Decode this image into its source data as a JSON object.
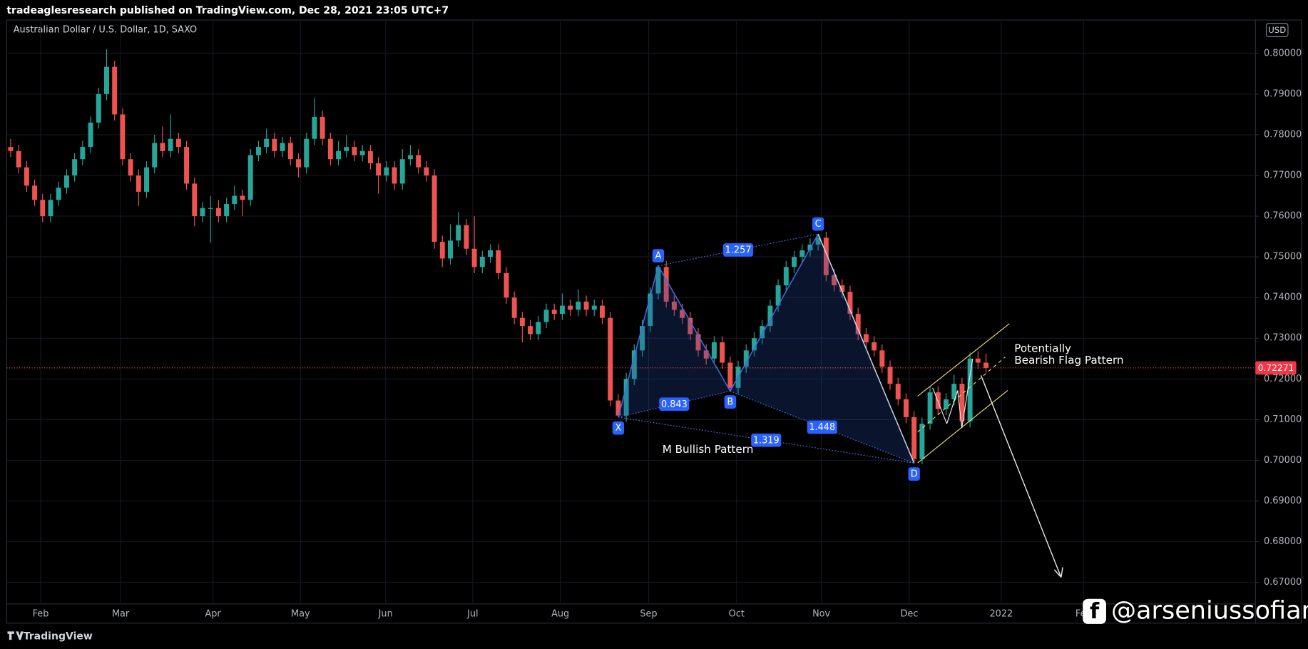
{
  "header": "tradeaglesresearch published on TradingView.com, Dec 28, 2021 23:05 UTC+7",
  "chart_data": {
    "type": "candlestick",
    "title": "Australian Dollar / U.S. Dollar, 1D, SAXO",
    "currency": "USD",
    "up_color": "#26a69a",
    "down_color": "#ef5350",
    "grid": true,
    "xlim": [
      -0.5,
      155.7
    ],
    "xticks": [
      {
        "value": 3.75,
        "label": "Feb"
      },
      {
        "value": 13.75,
        "label": "Mar"
      },
      {
        "value": 25.3,
        "label": "Apr"
      },
      {
        "value": 36.25,
        "label": "May"
      },
      {
        "value": 46.9,
        "label": "Jun"
      },
      {
        "value": 57.8,
        "label": "Jul"
      },
      {
        "value": 68.75,
        "label": "Aug"
      },
      {
        "value": 79.8,
        "label": "Sep"
      },
      {
        "value": 90.8,
        "label": "Oct"
      },
      {
        "value": 101.4,
        "label": "Nov"
      },
      {
        "value": 112.4,
        "label": "Dec"
      },
      {
        "value": 123.9,
        "label": "2022"
      },
      {
        "value": 134.2,
        "label": "Feb"
      }
    ],
    "ylim": [
      0.6647,
      0.8082
    ],
    "yticks": [
      {
        "value": 0.8,
        "label": "0.80000"
      },
      {
        "value": 0.79,
        "label": "0.79000"
      },
      {
        "value": 0.78,
        "label": "0.78000"
      },
      {
        "value": 0.77,
        "label": "0.77000"
      },
      {
        "value": 0.76,
        "label": "0.76000"
      },
      {
        "value": 0.75,
        "label": "0.75000"
      },
      {
        "value": 0.74,
        "label": "0.74000"
      },
      {
        "value": 0.73,
        "label": "0.73000"
      },
      {
        "value": 0.72,
        "label": "0.72000"
      },
      {
        "value": 0.71,
        "label": "0.71000"
      },
      {
        "value": 0.7,
        "label": "0.70000"
      },
      {
        "value": 0.69,
        "label": "0.69000"
      },
      {
        "value": 0.68,
        "label": "0.68000"
      },
      {
        "value": 0.67,
        "label": "0.67000"
      }
    ],
    "ohlc": [
      [
        0.777,
        0.779,
        0.7745,
        0.776
      ],
      [
        0.776,
        0.7775,
        0.7705,
        0.772
      ],
      [
        0.772,
        0.7735,
        0.766,
        0.7675
      ],
      [
        0.7675,
        0.769,
        0.7625,
        0.764
      ],
      [
        0.764,
        0.7655,
        0.7585,
        0.76
      ],
      [
        0.76,
        0.7655,
        0.7585,
        0.764
      ],
      [
        0.764,
        0.7685,
        0.7625,
        0.767
      ],
      [
        0.767,
        0.7715,
        0.7655,
        0.77
      ],
      [
        0.77,
        0.7755,
        0.7685,
        0.774
      ],
      [
        0.774,
        0.7785,
        0.7725,
        0.777
      ],
      [
        0.777,
        0.7845,
        0.7755,
        0.783
      ],
      [
        0.783,
        0.7915,
        0.7815,
        0.79
      ],
      [
        0.79,
        0.801,
        0.7885,
        0.7967
      ],
      [
        0.7967,
        0.7982,
        0.7835,
        0.785
      ],
      [
        0.785,
        0.7865,
        0.7725,
        0.774
      ],
      [
        0.774,
        0.7755,
        0.7685,
        0.77
      ],
      [
        0.77,
        0.7715,
        0.7625,
        0.766
      ],
      [
        0.766,
        0.7735,
        0.7645,
        0.772
      ],
      [
        0.772,
        0.78,
        0.7705,
        0.778
      ],
      [
        0.778,
        0.782,
        0.7745,
        0.776
      ],
      [
        0.776,
        0.785,
        0.7745,
        0.779
      ],
      [
        0.779,
        0.7805,
        0.7755,
        0.777
      ],
      [
        0.777,
        0.7785,
        0.7665,
        0.768
      ],
      [
        0.768,
        0.7695,
        0.7575,
        0.76
      ],
      [
        0.76,
        0.7635,
        0.7585,
        0.762
      ],
      [
        0.762,
        0.765,
        0.7535,
        0.762
      ],
      [
        0.762,
        0.764,
        0.7585,
        0.76
      ],
      [
        0.76,
        0.7645,
        0.7585,
        0.763
      ],
      [
        0.763,
        0.7675,
        0.7615,
        0.765
      ],
      [
        0.765,
        0.7665,
        0.76,
        0.764
      ],
      [
        0.764,
        0.7765,
        0.7625,
        0.775
      ],
      [
        0.775,
        0.7785,
        0.7735,
        0.777
      ],
      [
        0.777,
        0.7815,
        0.7755,
        0.779
      ],
      [
        0.779,
        0.7805,
        0.7745,
        0.776
      ],
      [
        0.776,
        0.7795,
        0.7745,
        0.778
      ],
      [
        0.778,
        0.7795,
        0.7725,
        0.774
      ],
      [
        0.774,
        0.7755,
        0.7695,
        0.772
      ],
      [
        0.772,
        0.7805,
        0.7705,
        0.779
      ],
      [
        0.779,
        0.789,
        0.7775,
        0.7844
      ],
      [
        0.7844,
        0.7859,
        0.7775,
        0.779
      ],
      [
        0.779,
        0.7805,
        0.7725,
        0.774
      ],
      [
        0.774,
        0.7785,
        0.7725,
        0.776
      ],
      [
        0.776,
        0.78,
        0.7745,
        0.777
      ],
      [
        0.777,
        0.7785,
        0.7735,
        0.775
      ],
      [
        0.775,
        0.7775,
        0.7735,
        0.776
      ],
      [
        0.776,
        0.7775,
        0.7715,
        0.773
      ],
      [
        0.773,
        0.7745,
        0.7655,
        0.77
      ],
      [
        0.77,
        0.7735,
        0.7685,
        0.772
      ],
      [
        0.772,
        0.7735,
        0.7665,
        0.768
      ],
      [
        0.768,
        0.7765,
        0.7665,
        0.774
      ],
      [
        0.774,
        0.7775,
        0.7725,
        0.775
      ],
      [
        0.775,
        0.7765,
        0.7705,
        0.772
      ],
      [
        0.772,
        0.7735,
        0.7685,
        0.77
      ],
      [
        0.77,
        0.7715,
        0.752,
        0.7537
      ],
      [
        0.7537,
        0.7552,
        0.7475,
        0.7496
      ],
      [
        0.7496,
        0.758,
        0.7481,
        0.754
      ],
      [
        0.754,
        0.761,
        0.7525,
        0.7578
      ],
      [
        0.7578,
        0.7593,
        0.7505,
        0.752
      ],
      [
        0.752,
        0.76,
        0.746,
        0.7475
      ],
      [
        0.7475,
        0.7515,
        0.746,
        0.75
      ],
      [
        0.75,
        0.7531,
        0.7485,
        0.7516
      ],
      [
        0.7516,
        0.7531,
        0.7445,
        0.746
      ],
      [
        0.746,
        0.7475,
        0.7385,
        0.74
      ],
      [
        0.74,
        0.7415,
        0.7335,
        0.735
      ],
      [
        0.735,
        0.7365,
        0.729,
        0.733
      ],
      [
        0.733,
        0.7345,
        0.7295,
        0.731
      ],
      [
        0.731,
        0.7355,
        0.7295,
        0.734
      ],
      [
        0.734,
        0.7385,
        0.7325,
        0.737
      ],
      [
        0.737,
        0.7385,
        0.7345,
        0.736
      ],
      [
        0.736,
        0.741,
        0.7345,
        0.738
      ],
      [
        0.738,
        0.7395,
        0.7355,
        0.737
      ],
      [
        0.737,
        0.742,
        0.7355,
        0.739
      ],
      [
        0.739,
        0.7405,
        0.7355,
        0.737
      ],
      [
        0.737,
        0.7395,
        0.7355,
        0.738
      ],
      [
        0.738,
        0.7395,
        0.7335,
        0.735
      ],
      [
        0.735,
        0.7365,
        0.7132,
        0.7147
      ],
      [
        0.7147,
        0.7162,
        0.7106,
        0.711
      ],
      [
        0.711,
        0.7215,
        0.7095,
        0.72
      ],
      [
        0.72,
        0.7285,
        0.7185,
        0.727
      ],
      [
        0.727,
        0.7345,
        0.7255,
        0.733
      ],
      [
        0.733,
        0.7425,
        0.7315,
        0.741
      ],
      [
        0.741,
        0.7478,
        0.7395,
        0.7475
      ],
      [
        0.7475,
        0.749,
        0.7375,
        0.739
      ],
      [
        0.739,
        0.7405,
        0.7355,
        0.737
      ],
      [
        0.737,
        0.7385,
        0.7335,
        0.735
      ],
      [
        0.735,
        0.7365,
        0.7295,
        0.731
      ],
      [
        0.731,
        0.7325,
        0.7255,
        0.727
      ],
      [
        0.727,
        0.7285,
        0.7235,
        0.725
      ],
      [
        0.725,
        0.7305,
        0.7235,
        0.729
      ],
      [
        0.729,
        0.7305,
        0.7225,
        0.724
      ],
      [
        0.724,
        0.7255,
        0.717,
        0.7178
      ],
      [
        0.7178,
        0.7245,
        0.7163,
        0.723
      ],
      [
        0.723,
        0.7285,
        0.7215,
        0.727
      ],
      [
        0.727,
        0.7315,
        0.7255,
        0.73
      ],
      [
        0.73,
        0.7345,
        0.7285,
        0.733
      ],
      [
        0.733,
        0.7395,
        0.7315,
        0.738
      ],
      [
        0.738,
        0.7445,
        0.7365,
        0.743
      ],
      [
        0.743,
        0.749,
        0.7415,
        0.7475
      ],
      [
        0.7475,
        0.7515,
        0.746,
        0.75
      ],
      [
        0.75,
        0.7531,
        0.7485,
        0.7516
      ],
      [
        0.7516,
        0.7545,
        0.7501,
        0.753
      ],
      [
        0.753,
        0.7556,
        0.7515,
        0.7547
      ],
      [
        0.7547,
        0.7562,
        0.744,
        0.7455
      ],
      [
        0.7455,
        0.747,
        0.7415,
        0.743
      ],
      [
        0.743,
        0.7445,
        0.7399,
        0.7414
      ],
      [
        0.7414,
        0.7429,
        0.7345,
        0.736
      ],
      [
        0.736,
        0.7375,
        0.7295,
        0.731
      ],
      [
        0.731,
        0.7325,
        0.7275,
        0.729
      ],
      [
        0.729,
        0.7305,
        0.7255,
        0.727
      ],
      [
        0.727,
        0.7285,
        0.7215,
        0.723
      ],
      [
        0.723,
        0.7245,
        0.7173,
        0.7188
      ],
      [
        0.7188,
        0.7203,
        0.7135,
        0.715
      ],
      [
        0.715,
        0.7165,
        0.7091,
        0.7106
      ],
      [
        0.7106,
        0.7121,
        0.6993,
        0.7003
      ],
      [
        0.7003,
        0.7105,
        0.699,
        0.709
      ],
      [
        0.709,
        0.7182,
        0.7075,
        0.7167
      ],
      [
        0.7167,
        0.7182,
        0.7111,
        0.7126
      ],
      [
        0.7126,
        0.7165,
        0.7111,
        0.715
      ],
      [
        0.715,
        0.721,
        0.7135,
        0.7188
      ],
      [
        0.7188,
        0.7203,
        0.7081,
        0.7096
      ],
      [
        0.7096,
        0.7265,
        0.7081,
        0.725
      ],
      [
        0.725,
        0.7268,
        0.7225,
        0.724
      ],
      [
        0.724,
        0.7262,
        0.7215,
        0.72271
      ]
    ],
    "pattern": {
      "name": "M Bullish Pattern",
      "points": [
        {
          "label": "X",
          "x": 76,
          "y": 0.7106
        },
        {
          "label": "A",
          "x": 81,
          "y": 0.7478
        },
        {
          "label": "B",
          "x": 90,
          "y": 0.717
        },
        {
          "label": "C",
          "x": 101,
          "y": 0.7556
        },
        {
          "label": "D",
          "x": 113,
          "y": 0.6993
        }
      ],
      "ratios": [
        0.843,
        1.257,
        1.448,
        1.319
      ]
    },
    "flag_annotation": [
      "Potentially",
      "Bearish Flag Pattern"
    ]
  },
  "footer": "TradingView",
  "watermark": "@arseniussofian"
}
